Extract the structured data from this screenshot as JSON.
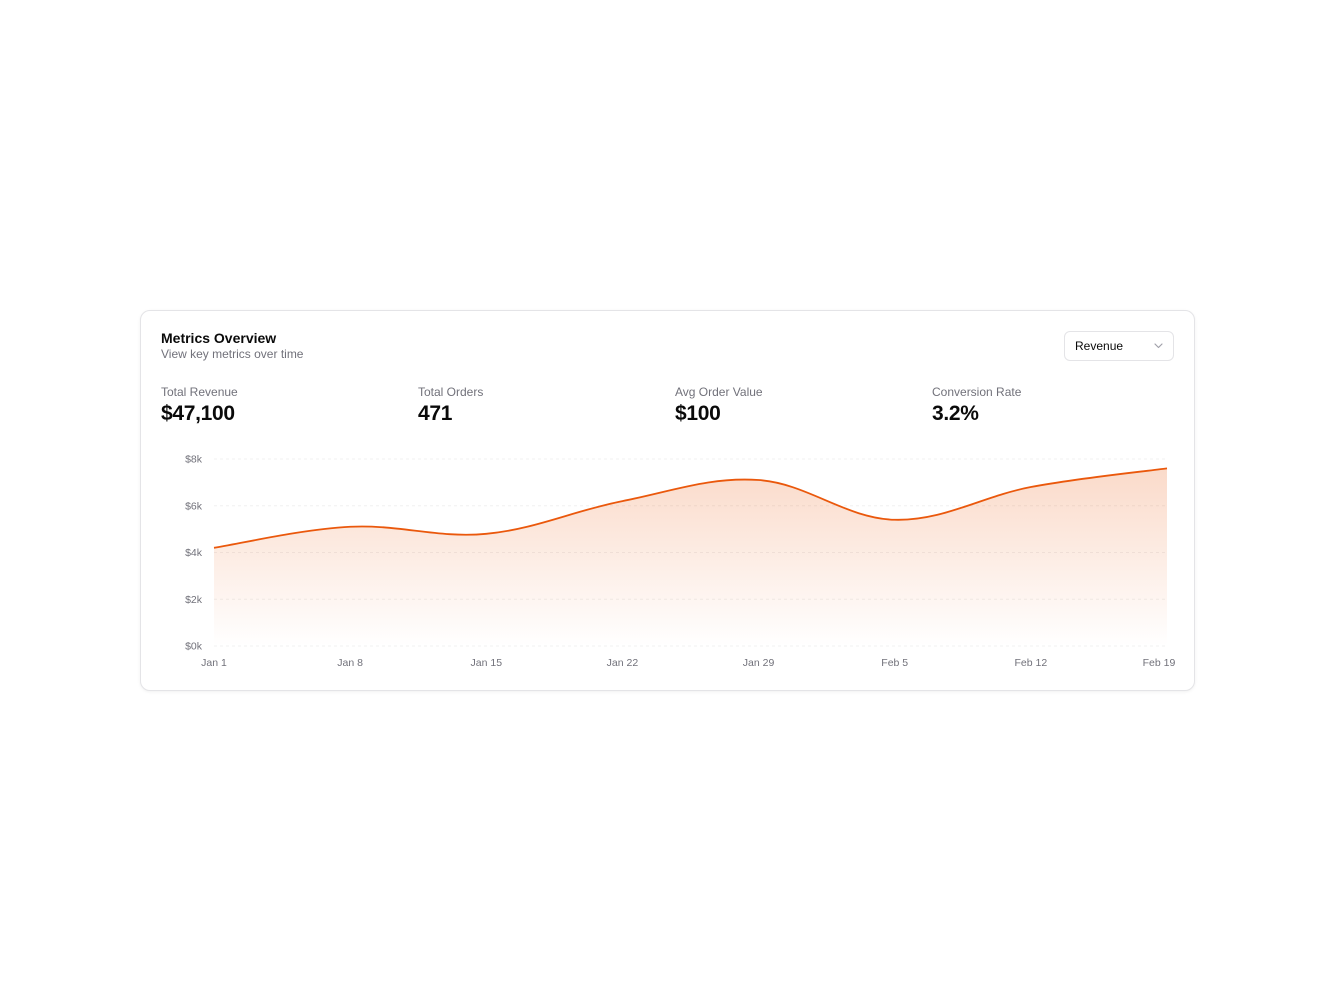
{
  "card": {
    "title": "Metrics Overview",
    "subtitle": "View key metrics over time",
    "metric_select": {
      "value": "Revenue"
    }
  },
  "stats": [
    {
      "label": "Total Revenue",
      "value": "$47,100"
    },
    {
      "label": "Total Orders",
      "value": "471"
    },
    {
      "label": "Avg Order Value",
      "value": "$100"
    },
    {
      "label": "Conversion Rate",
      "value": "3.2%"
    }
  ],
  "colors": {
    "accent": "#ea580c",
    "border": "#e4e4e7",
    "muted_text": "#71717a",
    "grid": "#f0f0f0"
  },
  "icons": {
    "select_chevron": "chevron-down-icon"
  },
  "chart_data": {
    "type": "area",
    "x": [
      "Jan 1",
      "Jan 8",
      "Jan 15",
      "Jan 22",
      "Jan 29",
      "Feb 5",
      "Feb 12",
      "Feb 19"
    ],
    "y_tick_labels": [
      "$0k",
      "$2k",
      "$4k",
      "$6k",
      "$8k"
    ],
    "ylim": [
      0,
      8000
    ],
    "series": [
      {
        "values": [
          4200,
          5100,
          4800,
          6200,
          7100,
          5400,
          6800,
          7600
        ]
      }
    ],
    "grid": true
  }
}
